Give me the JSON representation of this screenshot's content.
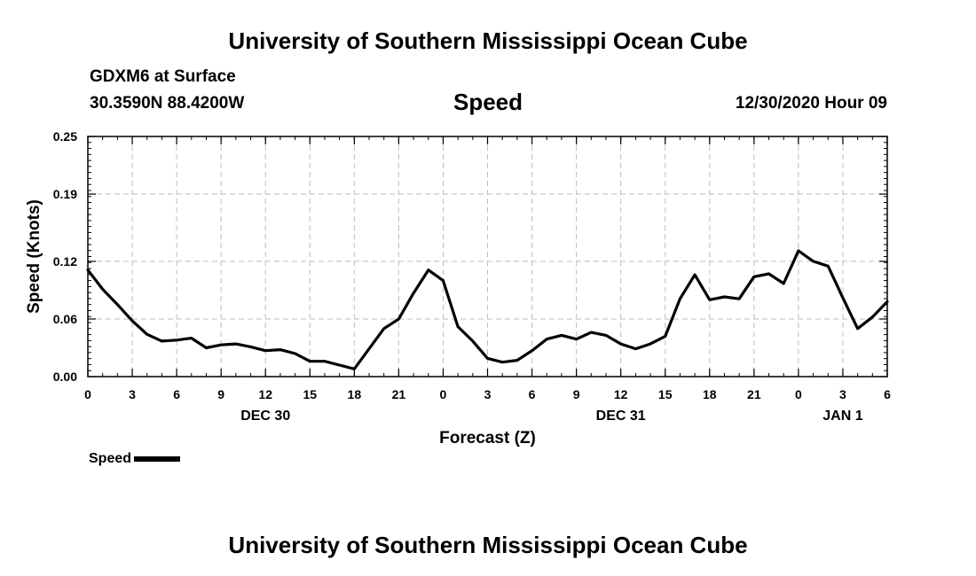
{
  "header": {
    "title_top": "University of Southern Mississippi Ocean Cube",
    "station": "GDXM6 at Surface",
    "location": "30.3590N 88.4200W",
    "variable": "Speed",
    "datetime": "12/30/2020 Hour 09",
    "title_bottom": "University of Southern Mississippi Ocean Cube"
  },
  "legend": {
    "label": "Speed"
  },
  "chart_data": {
    "type": "line",
    "title": "Speed",
    "xlabel": "Forecast (Z)",
    "ylabel": "Speed (Knots)",
    "xlim": [
      0,
      54
    ],
    "ylim": [
      0,
      0.25
    ],
    "grid": true,
    "legend_position": "bottom-left",
    "y_ticks": [
      0.0,
      0.06,
      0.12,
      0.19,
      0.25
    ],
    "y_tick_labels": [
      "0.00",
      "0.06",
      "0.12",
      "0.19",
      "0.25"
    ],
    "x_ticks": [
      0,
      3,
      6,
      9,
      12,
      15,
      18,
      21,
      24,
      27,
      30,
      33,
      36,
      39,
      42,
      45,
      48,
      51,
      54
    ],
    "x_tick_labels": [
      "0",
      "3",
      "6",
      "9",
      "12",
      "15",
      "18",
      "21",
      "0",
      "3",
      "6",
      "9",
      "12",
      "15",
      "18",
      "21",
      "0",
      "3",
      "6"
    ],
    "date_labels": [
      {
        "x": 12,
        "label": "DEC 30"
      },
      {
        "x": 36,
        "label": "DEC 31"
      },
      {
        "x": 51,
        "label": "JAN 1"
      }
    ],
    "series": [
      {
        "name": "Speed",
        "x": [
          0,
          1,
          2,
          3,
          4,
          5,
          6,
          7,
          8,
          9,
          10,
          11,
          12,
          13,
          14,
          15,
          16,
          17,
          18,
          19,
          20,
          21,
          22,
          23,
          24,
          25,
          26,
          27,
          28,
          29,
          30,
          31,
          32,
          33,
          34,
          35,
          36,
          37,
          38,
          39,
          40,
          41,
          42,
          43,
          44,
          45,
          46,
          47,
          48,
          49,
          50,
          51,
          52,
          53,
          54
        ],
        "values": [
          0.111,
          0.091,
          0.075,
          0.058,
          0.044,
          0.037,
          0.038,
          0.04,
          0.03,
          0.033,
          0.034,
          0.031,
          0.027,
          0.028,
          0.024,
          0.016,
          0.016,
          0.012,
          0.008,
          0.029,
          0.05,
          0.06,
          0.087,
          0.111,
          0.1,
          0.052,
          0.037,
          0.019,
          0.015,
          0.017,
          0.027,
          0.039,
          0.043,
          0.039,
          0.046,
          0.043,
          0.034,
          0.029,
          0.034,
          0.042,
          0.081,
          0.106,
          0.08,
          0.083,
          0.081,
          0.104,
          0.107,
          0.097,
          0.131,
          0.12,
          0.115,
          0.082,
          0.05,
          0.062,
          0.078
        ]
      }
    ]
  }
}
